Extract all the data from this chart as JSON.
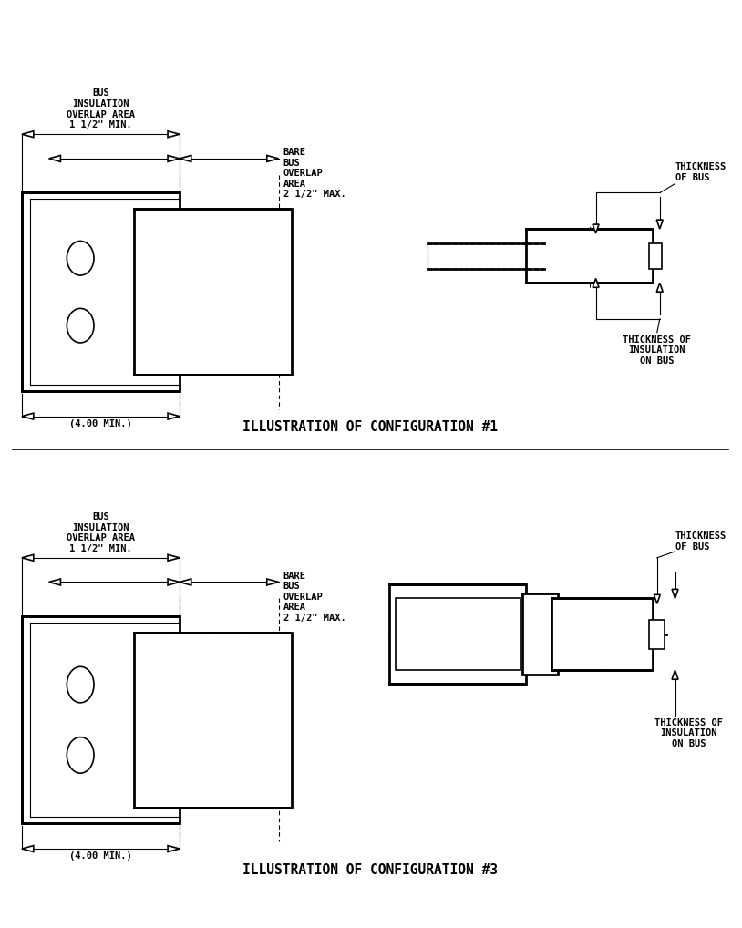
{
  "bg_color": "#ffffff",
  "line_color": "#000000",
  "title1": "ILLUSTRATION OF CONFIGURATION #1",
  "title2": "ILLUSTRATION OF CONFIGURATION #3",
  "label_4min": "(4.00 MIN.)",
  "font_size_label": 7.5,
  "font_size_title": 10.5
}
